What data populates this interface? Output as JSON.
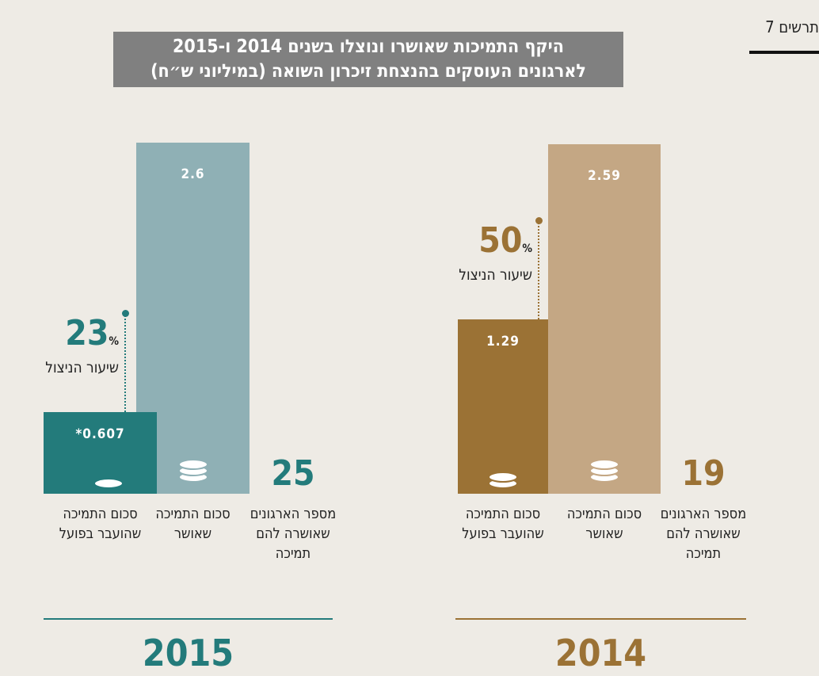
{
  "figure_label": "תרשים 7",
  "chart_data": {
    "type": "bar",
    "title": "היקף התמיכות שאושרו ונוצלו בשנים 2014 ו-2015",
    "subtitle": "לארגונים העוסקים בהנצחת זיכרון השואה (במיליוני ש״ח)",
    "categories": [
      "סכום התמיכה שהועבר בפועל",
      "סכום התמיכה שאושר",
      "מספר הארגונים שאושרה להם תמיכה"
    ],
    "utilization_label": "שיעור הניצול",
    "unit": "%",
    "ylim": [
      0,
      2.6
    ],
    "groups": [
      {
        "year": "2015",
        "transferred": 0.607,
        "transferred_label": "*0.607",
        "approved": 2.6,
        "utilization": 23,
        "organizations": 25,
        "color_transferred": "#237b7b",
        "color_approved": "#8fb0b5"
      },
      {
        "year": "2014",
        "transferred": 1.29,
        "approved": 2.59,
        "utilization": 50,
        "organizations": 19,
        "color_transferred": "#9b7235",
        "color_approved": "#c4a784"
      }
    ]
  }
}
